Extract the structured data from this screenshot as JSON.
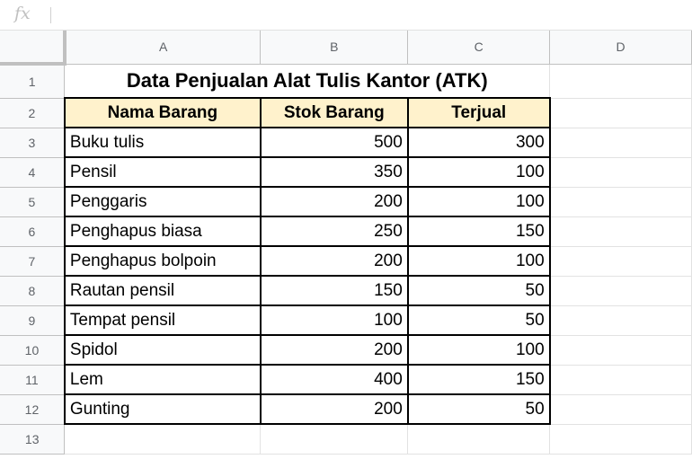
{
  "formula_bar": {
    "fx_label": "fx",
    "value": ""
  },
  "columns": [
    "A",
    "B",
    "C",
    "D"
  ],
  "rows": [
    "1",
    "2",
    "3",
    "4",
    "5",
    "6",
    "7",
    "8",
    "9",
    "10",
    "11",
    "12",
    "13"
  ],
  "title": "Data Penjualan Alat Tulis Kantor (ATK)",
  "headers": {
    "name": "Nama Barang",
    "stock": "Stok Barang",
    "sold": "Terjual"
  },
  "items": [
    {
      "name": "Buku tulis",
      "stock": "500",
      "sold": "300"
    },
    {
      "name": "Pensil",
      "stock": "350",
      "sold": "100"
    },
    {
      "name": "Penggaris",
      "stock": "200",
      "sold": "100"
    },
    {
      "name": "Penghapus biasa",
      "stock": "250",
      "sold": "150"
    },
    {
      "name": "Penghapus bolpoin",
      "stock": "200",
      "sold": "100"
    },
    {
      "name": "Rautan pensil",
      "stock": "150",
      "sold": "50"
    },
    {
      "name": "Tempat pensil",
      "stock": "100",
      "sold": "50"
    },
    {
      "name": "Spidol",
      "stock": "200",
      "sold": "100"
    },
    {
      "name": "Lem",
      "stock": "400",
      "sold": "150"
    },
    {
      "name": "Gunting",
      "stock": "200",
      "sold": "50"
    }
  ],
  "colors": {
    "header_fill": "#fff2cc",
    "grid": "#e2e2e2",
    "header_bg": "#f8f9fa"
  }
}
